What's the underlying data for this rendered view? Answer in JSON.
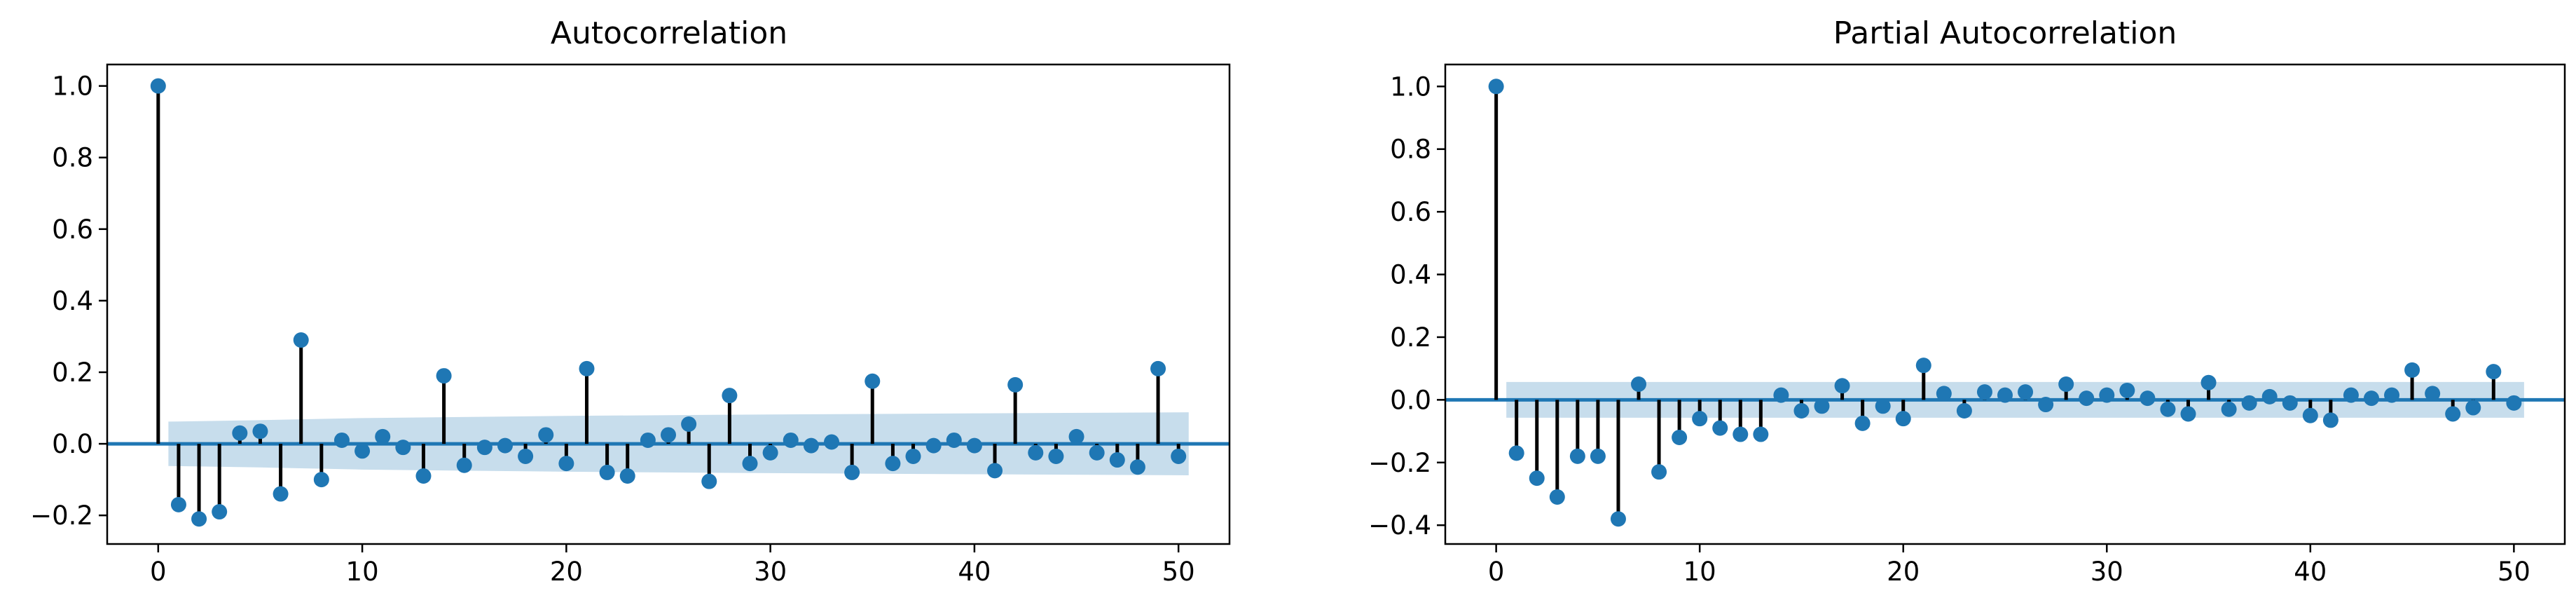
{
  "colors": {
    "stem": "#000000",
    "marker": "#1f77b4",
    "zero_line": "#1f77b4",
    "confidence_band": "#1f77b4",
    "axes": "#000000",
    "background": "#ffffff"
  },
  "chart_data": [
    {
      "type": "scatter",
      "subtype": "stem",
      "title": "Autocorrelation",
      "xlabel": "",
      "ylabel": "",
      "xlim": [
        -2.5,
        52.5
      ],
      "ylim": [
        -0.28,
        1.06
      ],
      "x_ticks": [
        0,
        10,
        20,
        30,
        40,
        50
      ],
      "x_tick_labels": [
        "0",
        "10",
        "20",
        "30",
        "40",
        "50"
      ],
      "y_ticks": [
        -0.2,
        0.0,
        0.2,
        0.4,
        0.6,
        0.8,
        1.0
      ],
      "y_tick_labels": [
        "−0.2",
        "0.0",
        "0.2",
        "0.4",
        "0.6",
        "0.8",
        "1.0"
      ],
      "grid": false,
      "x": [
        0,
        1,
        2,
        3,
        4,
        5,
        6,
        7,
        8,
        9,
        10,
        11,
        12,
        13,
        14,
        15,
        16,
        17,
        18,
        19,
        20,
        21,
        22,
        23,
        24,
        25,
        26,
        27,
        28,
        29,
        30,
        31,
        32,
        33,
        34,
        35,
        36,
        37,
        38,
        39,
        40,
        41,
        42,
        43,
        44,
        45,
        46,
        47,
        48,
        49,
        50
      ],
      "values": [
        1.0,
        -0.17,
        -0.21,
        -0.19,
        0.03,
        0.035,
        -0.14,
        0.29,
        -0.1,
        0.01,
        -0.02,
        0.02,
        -0.01,
        -0.09,
        0.19,
        -0.06,
        -0.01,
        -0.005,
        -0.035,
        0.025,
        -0.055,
        0.21,
        -0.08,
        -0.09,
        0.01,
        0.025,
        0.055,
        -0.105,
        0.135,
        -0.055,
        -0.025,
        0.01,
        -0.005,
        0.005,
        -0.08,
        0.175,
        -0.055,
        -0.035,
        -0.005,
        0.01,
        -0.005,
        -0.075,
        0.165,
        -0.025,
        -0.035,
        0.02,
        -0.025,
        -0.045,
        -0.065,
        0.21,
        -0.035
      ],
      "confidence_band": {
        "from_lag": 0.5,
        "to_lag": 50.5,
        "upper": [
          [
            0.5,
            0.062
          ],
          [
            5,
            0.066
          ],
          [
            10,
            0.072
          ],
          [
            20,
            0.078
          ],
          [
            30,
            0.082
          ],
          [
            40,
            0.085
          ],
          [
            50.5,
            0.088
          ]
        ],
        "lower": [
          [
            0.5,
            -0.062
          ],
          [
            5,
            -0.066
          ],
          [
            10,
            -0.072
          ],
          [
            20,
            -0.078
          ],
          [
            30,
            -0.082
          ],
          [
            40,
            -0.085
          ],
          [
            50.5,
            -0.088
          ]
        ]
      }
    },
    {
      "type": "scatter",
      "subtype": "stem",
      "title": "Partial Autocorrelation",
      "xlabel": "",
      "ylabel": "",
      "xlim": [
        -2.5,
        52.5
      ],
      "ylim": [
        -0.46,
        1.07
      ],
      "x_ticks": [
        0,
        10,
        20,
        30,
        40,
        50
      ],
      "x_tick_labels": [
        "0",
        "10",
        "20",
        "30",
        "40",
        "50"
      ],
      "y_ticks": [
        -0.4,
        -0.2,
        0.0,
        0.2,
        0.4,
        0.6,
        0.8,
        1.0
      ],
      "y_tick_labels": [
        "−0.4",
        "−0.2",
        "0.0",
        "0.2",
        "0.4",
        "0.6",
        "0.8",
        "1.0"
      ],
      "grid": false,
      "x": [
        0,
        1,
        2,
        3,
        4,
        5,
        6,
        7,
        8,
        9,
        10,
        11,
        12,
        13,
        14,
        15,
        16,
        17,
        18,
        19,
        20,
        21,
        22,
        23,
        24,
        25,
        26,
        27,
        28,
        29,
        30,
        31,
        32,
        33,
        34,
        35,
        36,
        37,
        38,
        39,
        40,
        41,
        42,
        43,
        44,
        45,
        46,
        47,
        48,
        49,
        50
      ],
      "values": [
        1.0,
        -0.17,
        -0.25,
        -0.31,
        -0.18,
        -0.18,
        -0.38,
        0.05,
        -0.23,
        -0.12,
        -0.06,
        -0.09,
        -0.11,
        -0.11,
        0.015,
        -0.035,
        -0.02,
        0.045,
        -0.075,
        -0.02,
        -0.06,
        0.11,
        0.02,
        -0.035,
        0.025,
        0.015,
        0.025,
        -0.015,
        0.05,
        0.005,
        0.015,
        0.03,
        0.005,
        -0.03,
        -0.045,
        0.055,
        -0.03,
        -0.01,
        0.01,
        -0.01,
        -0.05,
        -0.065,
        0.015,
        0.005,
        0.015,
        0.095,
        0.02,
        -0.045,
        -0.025,
        0.09,
        -0.01
      ],
      "confidence_band": {
        "from_lag": 0.5,
        "to_lag": 50.5,
        "upper": [
          [
            0.5,
            0.057
          ],
          [
            50.5,
            0.057
          ]
        ],
        "lower": [
          [
            0.5,
            -0.057
          ],
          [
            50.5,
            -0.057
          ]
        ]
      }
    }
  ]
}
